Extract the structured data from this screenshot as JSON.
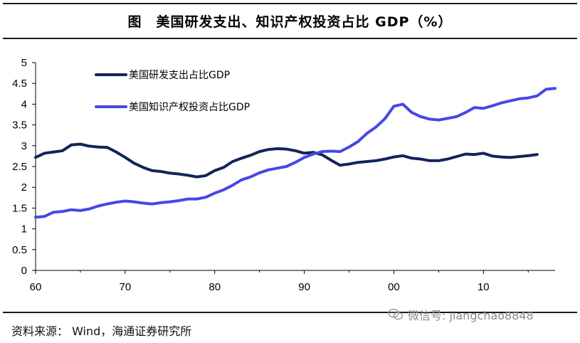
{
  "header": {
    "title": "图　美国研发支出、知识产权投资占比 GDP（%）"
  },
  "footer": {
    "source": "资料来源： Wind，海通证券研究所",
    "watermark": "微信号: jiangchao8848",
    "watermark_icon": "wechat-icon"
  },
  "colors": {
    "rd": "#13235c",
    "ip": "#4747e6",
    "axis": "#000000"
  },
  "chart_data": {
    "type": "line",
    "title": "美国研发支出、知识产权投资占比 GDP（%）",
    "xlabel": "",
    "ylabel": "",
    "ylim": [
      0,
      5
    ],
    "xlim": [
      1960,
      2018
    ],
    "y_ticks": [
      "0",
      "0.5",
      "1",
      "1.5",
      "2",
      "2.5",
      "3",
      "3.5",
      "4",
      "4.5",
      "5"
    ],
    "x_ticks": [
      {
        "value": 1960,
        "label": "60"
      },
      {
        "value": 1970,
        "label": "70"
      },
      {
        "value": 1980,
        "label": "80"
      },
      {
        "value": 1990,
        "label": "90"
      },
      {
        "value": 2000,
        "label": "00"
      },
      {
        "value": 2010,
        "label": "10"
      }
    ],
    "grid": false,
    "legend_position": "top-left",
    "series": [
      {
        "name": "美国研发支出占比GDP",
        "color": "#13235c",
        "points": [
          [
            1960,
            2.72
          ],
          [
            1961,
            2.82
          ],
          [
            1962,
            2.85
          ],
          [
            1963,
            2.88
          ],
          [
            1964,
            3.02
          ],
          [
            1965,
            3.04
          ],
          [
            1966,
            2.99
          ],
          [
            1967,
            2.97
          ],
          [
            1968,
            2.96
          ],
          [
            1969,
            2.85
          ],
          [
            1970,
            2.72
          ],
          [
            1971,
            2.58
          ],
          [
            1972,
            2.48
          ],
          [
            1973,
            2.4
          ],
          [
            1974,
            2.38
          ],
          [
            1975,
            2.34
          ],
          [
            1976,
            2.32
          ],
          [
            1977,
            2.29
          ],
          [
            1978,
            2.25
          ],
          [
            1979,
            2.28
          ],
          [
            1980,
            2.4
          ],
          [
            1981,
            2.48
          ],
          [
            1982,
            2.62
          ],
          [
            1983,
            2.7
          ],
          [
            1984,
            2.77
          ],
          [
            1985,
            2.86
          ],
          [
            1986,
            2.91
          ],
          [
            1987,
            2.93
          ],
          [
            1988,
            2.92
          ],
          [
            1989,
            2.88
          ],
          [
            1990,
            2.82
          ],
          [
            1991,
            2.84
          ],
          [
            1992,
            2.78
          ],
          [
            1993,
            2.65
          ],
          [
            1994,
            2.53
          ],
          [
            1995,
            2.56
          ],
          [
            1996,
            2.6
          ],
          [
            1997,
            2.62
          ],
          [
            1998,
            2.64
          ],
          [
            1999,
            2.68
          ],
          [
            2000,
            2.73
          ],
          [
            2001,
            2.76
          ],
          [
            2002,
            2.7
          ],
          [
            2003,
            2.68
          ],
          [
            2004,
            2.64
          ],
          [
            2005,
            2.64
          ],
          [
            2006,
            2.68
          ],
          [
            2007,
            2.74
          ],
          [
            2008,
            2.8
          ],
          [
            2009,
            2.79
          ],
          [
            2010,
            2.82
          ],
          [
            2011,
            2.75
          ],
          [
            2012,
            2.73
          ],
          [
            2013,
            2.72
          ],
          [
            2014,
            2.74
          ],
          [
            2015,
            2.76
          ],
          [
            2016,
            2.79
          ]
        ]
      },
      {
        "name": "美国知识产权投资占比GDP",
        "color": "#4747e6",
        "points": [
          [
            1960,
            1.28
          ],
          [
            1961,
            1.3
          ],
          [
            1962,
            1.4
          ],
          [
            1963,
            1.42
          ],
          [
            1964,
            1.46
          ],
          [
            1965,
            1.44
          ],
          [
            1966,
            1.48
          ],
          [
            1967,
            1.55
          ],
          [
            1968,
            1.6
          ],
          [
            1969,
            1.64
          ],
          [
            1970,
            1.67
          ],
          [
            1971,
            1.65
          ],
          [
            1972,
            1.62
          ],
          [
            1973,
            1.6
          ],
          [
            1974,
            1.63
          ],
          [
            1975,
            1.65
          ],
          [
            1976,
            1.68
          ],
          [
            1977,
            1.72
          ],
          [
            1978,
            1.72
          ],
          [
            1979,
            1.76
          ],
          [
            1980,
            1.86
          ],
          [
            1981,
            1.94
          ],
          [
            1982,
            2.05
          ],
          [
            1983,
            2.18
          ],
          [
            1984,
            2.25
          ],
          [
            1985,
            2.35
          ],
          [
            1986,
            2.42
          ],
          [
            1987,
            2.46
          ],
          [
            1988,
            2.5
          ],
          [
            1989,
            2.6
          ],
          [
            1990,
            2.72
          ],
          [
            1991,
            2.8
          ],
          [
            1992,
            2.86
          ],
          [
            1993,
            2.87
          ],
          [
            1994,
            2.86
          ],
          [
            1995,
            2.97
          ],
          [
            1996,
            3.1
          ],
          [
            1997,
            3.3
          ],
          [
            1998,
            3.45
          ],
          [
            1999,
            3.65
          ],
          [
            2000,
            3.95
          ],
          [
            2001,
            4.0
          ],
          [
            2002,
            3.8
          ],
          [
            2003,
            3.7
          ],
          [
            2004,
            3.64
          ],
          [
            2005,
            3.62
          ],
          [
            2006,
            3.66
          ],
          [
            2007,
            3.7
          ],
          [
            2008,
            3.8
          ],
          [
            2009,
            3.92
          ],
          [
            2010,
            3.9
          ],
          [
            2011,
            3.96
          ],
          [
            2012,
            4.03
          ],
          [
            2013,
            4.08
          ],
          [
            2014,
            4.13
          ],
          [
            2015,
            4.15
          ],
          [
            2016,
            4.2
          ],
          [
            2017,
            4.36
          ],
          [
            2018,
            4.38
          ]
        ]
      }
    ]
  }
}
